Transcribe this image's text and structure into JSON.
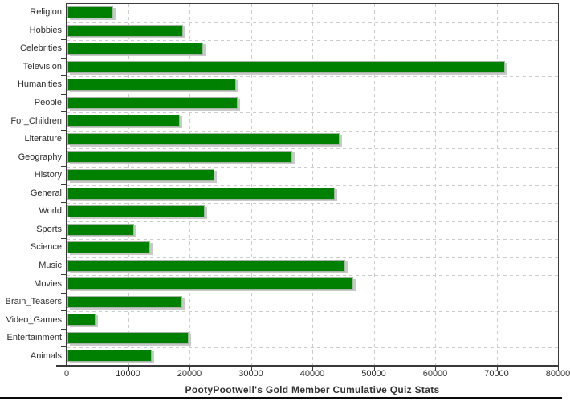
{
  "chart_data": {
    "type": "bar",
    "orientation": "horizontal",
    "title": "PootyPootwell's Gold Member Cumulative Quiz Stats",
    "categories": [
      "Religion",
      "Hobbies",
      "Celebrities",
      "Television",
      "Humanities",
      "People",
      "For_Children",
      "Literature",
      "Geography",
      "History",
      "General",
      "World",
      "Sports",
      "Science",
      "Music",
      "Movies",
      "Brain_Teasers",
      "Video_Games",
      "Entertainment",
      "Animals"
    ],
    "values": [
      7400,
      18800,
      22100,
      71300,
      27400,
      27700,
      18300,
      44300,
      36600,
      23900,
      43500,
      22300,
      10800,
      13500,
      45200,
      46500,
      18700,
      4600,
      19700,
      13700
    ],
    "xlabel": "",
    "ylabel": "",
    "xlim": [
      0,
      80000
    ],
    "x_tick_step": 10000,
    "x_tick_labels": [
      "0",
      "10000",
      "20000",
      "30000",
      "40000",
      "50000",
      "60000",
      "70000",
      "80000"
    ],
    "grid": "dashed-both-axes",
    "legend": "none",
    "colors": {
      "bar": "#008000",
      "bar_shadow": "#c9c9c9",
      "grid": "#cccccc",
      "axis": "#3a3a3a",
      "text": "#2e2e2e",
      "background": "#ffffff"
    }
  }
}
